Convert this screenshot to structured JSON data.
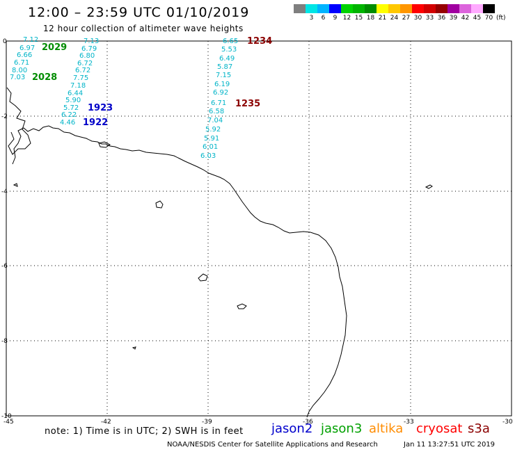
{
  "title": "12:00 – 23:59 UTC 01/10/2019",
  "subtitle": "12 hour collection of altimeter wave heights",
  "legend": {
    "colors": [
      "#7f7f7f",
      "#00e5e5",
      "#00b4ff",
      "#0000ff",
      "#00d200",
      "#00b400",
      "#008c00",
      "#ffff00",
      "#ffc800",
      "#ff9600",
      "#ff0000",
      "#d20000",
      "#960000",
      "#a000a0",
      "#dc64dc",
      "#ffaaff",
      "#000000"
    ],
    "labels": [
      "3",
      "6",
      "9",
      "12",
      "15",
      "18",
      "21",
      "24",
      "27",
      "30",
      "33",
      "36",
      "39",
      "42",
      "45",
      "70"
    ],
    "unit": "(ft)"
  },
  "axes": {
    "x_ticks": [
      "-45",
      "-42",
      "-39",
      "-36",
      "-33",
      "-30"
    ],
    "y_ticks": [
      "0",
      "-2",
      "-4",
      "-6",
      "-8",
      "-10"
    ],
    "x_range": [
      -45,
      -30
    ],
    "y_range": [
      -10,
      0
    ]
  },
  "tracks": [
    {
      "id": "2029",
      "satellite": "jason3",
      "color": "#008c00"
    },
    {
      "id": "2028",
      "satellite": "jason3",
      "color": "#008c00"
    },
    {
      "id": "1923",
      "satellite": "jason2",
      "color": "#0000c8"
    },
    {
      "id": "1922",
      "satellite": "jason2",
      "color": "#0000c8"
    },
    {
      "id": "1234",
      "satellite": "s3a",
      "color": "#8b0000"
    },
    {
      "id": "1235",
      "satellite": "s3a",
      "color": "#8b0000"
    }
  ],
  "track_a_values": [
    "7.12",
    "6.97",
    "6.66",
    "6.71",
    "8.00",
    "7.03"
  ],
  "track_b_values": [
    "7.13",
    "6.79",
    "6.80",
    "6.72",
    "6.72",
    "7.75",
    "7.18",
    "6.44",
    "5.90",
    "5.72",
    "6.22",
    "4.46"
  ],
  "track_c_values": [
    "6.65",
    "5.53",
    "6.49",
    "5.87",
    "7.15",
    "6.19",
    "6.92",
    "6.71",
    "6.58",
    "7.04",
    "5.92",
    "5.91",
    "6.01",
    "6.03"
  ],
  "note": "note: 1) Time is in UTC; 2) SWH is in feet",
  "satellites": [
    {
      "name": "jason2",
      "color": "#0000cc"
    },
    {
      "name": "jason3",
      "color": "#00a000"
    },
    {
      "name": "altika",
      "color": "#ff8c00"
    },
    {
      "name": "cryosat",
      "color": "#ff0000"
    },
    {
      "name": "s3a",
      "color": "#8b0000"
    }
  ],
  "credit": "NOAA/NESDIS Center for Satellite Applications and Research",
  "generated": "Jan 11 13:27:51 UTC 2019"
}
